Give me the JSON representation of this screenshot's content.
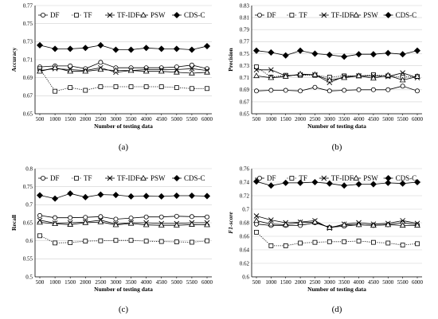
{
  "chart_data": [
    {
      "type": "line",
      "caption": "(a)",
      "xlabel": "Number of testing data",
      "ylabel": "Accuracy",
      "x": [
        500,
        1000,
        1500,
        2000,
        2500,
        3000,
        3500,
        4000,
        4500,
        5000,
        5500,
        6000
      ],
      "ylim": [
        0.65,
        0.77
      ],
      "yticks": [
        "0.65",
        "0.67",
        "0.69",
        "0.71",
        "0.73",
        "0.75",
        "0.77"
      ],
      "legend_position": "top",
      "grid": true,
      "series": [
        {
          "name": "DF",
          "marker": "circle-open",
          "dash": "solid",
          "values": [
            0.702,
            0.703,
            0.703,
            0.7,
            0.707,
            0.701,
            0.701,
            0.701,
            0.701,
            0.702,
            0.704,
            0.7
          ]
        },
        {
          "name": "TF",
          "marker": "square-open",
          "dash": "dotted",
          "values": [
            0.7,
            0.675,
            0.679,
            0.676,
            0.68,
            0.68,
            0.68,
            0.68,
            0.68,
            0.679,
            0.678,
            0.678
          ]
        },
        {
          "name": "TF-IDF",
          "marker": "x",
          "dash": "solid",
          "values": [
            0.698,
            0.7,
            0.699,
            0.698,
            0.701,
            0.696,
            0.698,
            0.699,
            0.699,
            0.699,
            0.7,
            0.698
          ]
        },
        {
          "name": "PSW",
          "marker": "triangle-open",
          "dash": "solid",
          "values": [
            0.697,
            0.701,
            0.697,
            0.697,
            0.699,
            0.698,
            0.698,
            0.697,
            0.697,
            0.696,
            0.695,
            0.696
          ]
        },
        {
          "name": "CDS-C",
          "marker": "diamond-filled",
          "dash": "solid",
          "values": [
            0.726,
            0.722,
            0.722,
            0.723,
            0.726,
            0.721,
            0.721,
            0.723,
            0.722,
            0.722,
            0.721,
            0.725
          ]
        }
      ]
    },
    {
      "type": "line",
      "caption": "(b)",
      "xlabel": "Number of testing data",
      "ylabel": "Precision",
      "x": [
        500,
        1000,
        1500,
        2000,
        2500,
        3000,
        3500,
        4000,
        4500,
        5000,
        5500,
        6000
      ],
      "ylim": [
        0.65,
        0.83
      ],
      "yticks": [
        "0.65",
        "0.67",
        "0.69",
        "0.71",
        "0.73",
        "0.75",
        "0.77",
        "0.79",
        "0.81",
        "0.83"
      ],
      "legend_position": "top",
      "grid": true,
      "series": [
        {
          "name": "DF",
          "marker": "circle-open",
          "dash": "solid",
          "values": [
            0.688,
            0.689,
            0.689,
            0.688,
            0.694,
            0.688,
            0.689,
            0.69,
            0.69,
            0.69,
            0.696,
            0.688
          ]
        },
        {
          "name": "TF",
          "marker": "square-open",
          "dash": "dotted",
          "values": [
            0.728,
            0.711,
            0.714,
            0.714,
            0.714,
            0.711,
            0.713,
            0.713,
            0.715,
            0.713,
            0.711,
            0.712
          ]
        },
        {
          "name": "TF-IDF",
          "marker": "x",
          "dash": "solid",
          "values": [
            0.723,
            0.723,
            0.713,
            0.715,
            0.715,
            0.702,
            0.712,
            0.713,
            0.713,
            0.712,
            0.718,
            0.71
          ]
        },
        {
          "name": "PSW",
          "marker": "triangle-open",
          "dash": "solid",
          "values": [
            0.713,
            0.71,
            0.712,
            0.716,
            0.715,
            0.706,
            0.71,
            0.713,
            0.709,
            0.714,
            0.706,
            0.712
          ]
        },
        {
          "name": "CDS-C",
          "marker": "diamond-filled",
          "dash": "solid",
          "values": [
            0.755,
            0.752,
            0.747,
            0.755,
            0.75,
            0.748,
            0.745,
            0.749,
            0.749,
            0.751,
            0.749,
            0.755
          ]
        }
      ]
    },
    {
      "type": "line",
      "caption": "(c)",
      "xlabel": "Number of testing data",
      "ylabel": "Recall",
      "x": [
        500,
        1000,
        1500,
        2000,
        2500,
        3000,
        3500,
        4000,
        4500,
        5000,
        5500,
        6000
      ],
      "ylim": [
        0.5,
        0.8
      ],
      "yticks": [
        "0.5",
        "0.55",
        "0.6",
        "0.65",
        "0.7",
        "0.75",
        "0.8"
      ],
      "legend_position": "top",
      "grid": true,
      "series": [
        {
          "name": "DF",
          "marker": "circle-open",
          "dash": "solid",
          "values": [
            0.67,
            0.664,
            0.664,
            0.665,
            0.667,
            0.66,
            0.663,
            0.666,
            0.666,
            0.668,
            0.667,
            0.666
          ]
        },
        {
          "name": "TF",
          "marker": "square-open",
          "dash": "dotted",
          "values": [
            0.614,
            0.594,
            0.595,
            0.599,
            0.6,
            0.601,
            0.601,
            0.599,
            0.598,
            0.597,
            0.596,
            0.6
          ]
        },
        {
          "name": "TF-IDF",
          "marker": "x",
          "dash": "solid",
          "values": [
            0.657,
            0.649,
            0.65,
            0.652,
            0.657,
            0.647,
            0.65,
            0.65,
            0.648,
            0.648,
            0.65,
            0.65
          ]
        },
        {
          "name": "PSW",
          "marker": "triangle-open",
          "dash": "solid",
          "values": [
            0.651,
            0.647,
            0.645,
            0.65,
            0.652,
            0.644,
            0.648,
            0.644,
            0.643,
            0.643,
            0.645,
            0.644
          ]
        },
        {
          "name": "CDS-C",
          "marker": "diamond-filled",
          "dash": "solid",
          "values": [
            0.726,
            0.717,
            0.731,
            0.721,
            0.728,
            0.727,
            0.723,
            0.724,
            0.723,
            0.725,
            0.725,
            0.724
          ]
        }
      ]
    },
    {
      "type": "line",
      "caption": "(d)",
      "xlabel": "Number of testing data",
      "ylabel": "F1-score",
      "x": [
        500,
        1000,
        1500,
        2000,
        2500,
        3000,
        3500,
        4000,
        4500,
        5000,
        5500,
        6000
      ],
      "ylim": [
        0.6,
        0.76
      ],
      "yticks": [
        "0.6",
        "0.62",
        "0.64",
        "0.66",
        "0.68",
        "0.7",
        "0.72",
        "0.74",
        "0.76"
      ],
      "legend_position": "top",
      "grid": true,
      "series": [
        {
          "name": "DF",
          "marker": "circle-open",
          "dash": "solid",
          "values": [
            0.678,
            0.676,
            0.676,
            0.676,
            0.68,
            0.673,
            0.675,
            0.677,
            0.676,
            0.677,
            0.68,
            0.677
          ]
        },
        {
          "name": "TF",
          "marker": "square-open",
          "dash": "dotted",
          "values": [
            0.666,
            0.646,
            0.646,
            0.65,
            0.651,
            0.652,
            0.652,
            0.653,
            0.651,
            0.65,
            0.647,
            0.649
          ]
        },
        {
          "name": "TF-IDF",
          "marker": "x",
          "dash": "solid",
          "values": [
            0.69,
            0.684,
            0.68,
            0.681,
            0.683,
            0.672,
            0.678,
            0.68,
            0.678,
            0.679,
            0.683,
            0.679
          ]
        },
        {
          "name": "PSW",
          "marker": "triangle-open",
          "dash": "solid",
          "values": [
            0.683,
            0.678,
            0.677,
            0.68,
            0.681,
            0.673,
            0.677,
            0.677,
            0.676,
            0.677,
            0.676,
            0.676
          ]
        },
        {
          "name": "CDS-C",
          "marker": "diamond-filled",
          "dash": "solid",
          "values": [
            0.741,
            0.735,
            0.739,
            0.739,
            0.74,
            0.738,
            0.735,
            0.737,
            0.737,
            0.739,
            0.738,
            0.74
          ]
        }
      ]
    }
  ]
}
